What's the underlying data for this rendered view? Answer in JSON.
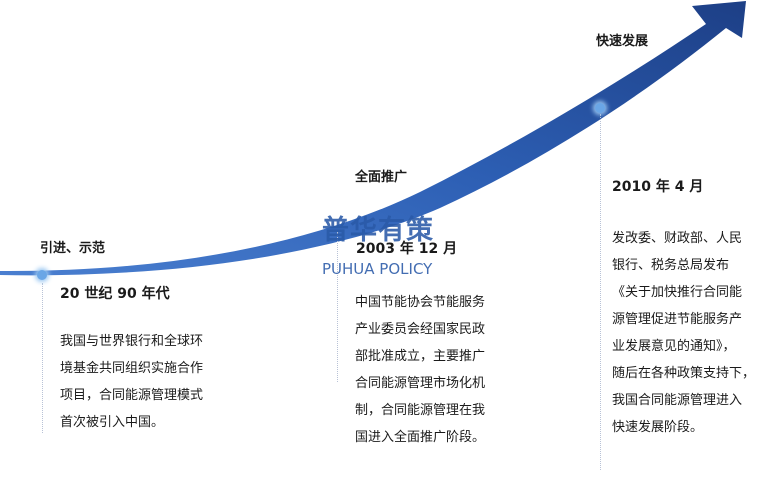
{
  "colors": {
    "arrow_dark": "#1d3f86",
    "arrow_light": "#3a6fc4",
    "dot": "#6aa6e6"
  },
  "stages": [
    {
      "title": "引进、示范",
      "date": "20 世纪 90 年代",
      "lines": [
        "我国与世界银行和全球环",
        "境基金共同组织实施合作",
        "项目，合同能源管理模式",
        "首次被引入中国。"
      ]
    },
    {
      "title": "全面推广",
      "date": "2003 年 12 月",
      "lines": [
        "中国节能协会节能服务",
        "产业委员会经国家民政",
        "部批准成立，主要推广",
        "合同能源管理市场化机",
        "制，合同能源管理在我",
        "国进入全面推广阶段。"
      ]
    },
    {
      "title": "快速发展",
      "date": "2010 年 4 月",
      "lines": [
        "发改委、财政部、人民",
        "银行、税务总局发布",
        "《关于加快推行合同能",
        "源管理促进节能服务产",
        "业发展意见的通知》，",
        "随后在各种政策支持下，",
        "我国合同能源管理进入",
        "快速发展阶段。"
      ]
    }
  ],
  "watermark": {
    "cn": "普华有策",
    "en": "PUHUA POLICY"
  }
}
